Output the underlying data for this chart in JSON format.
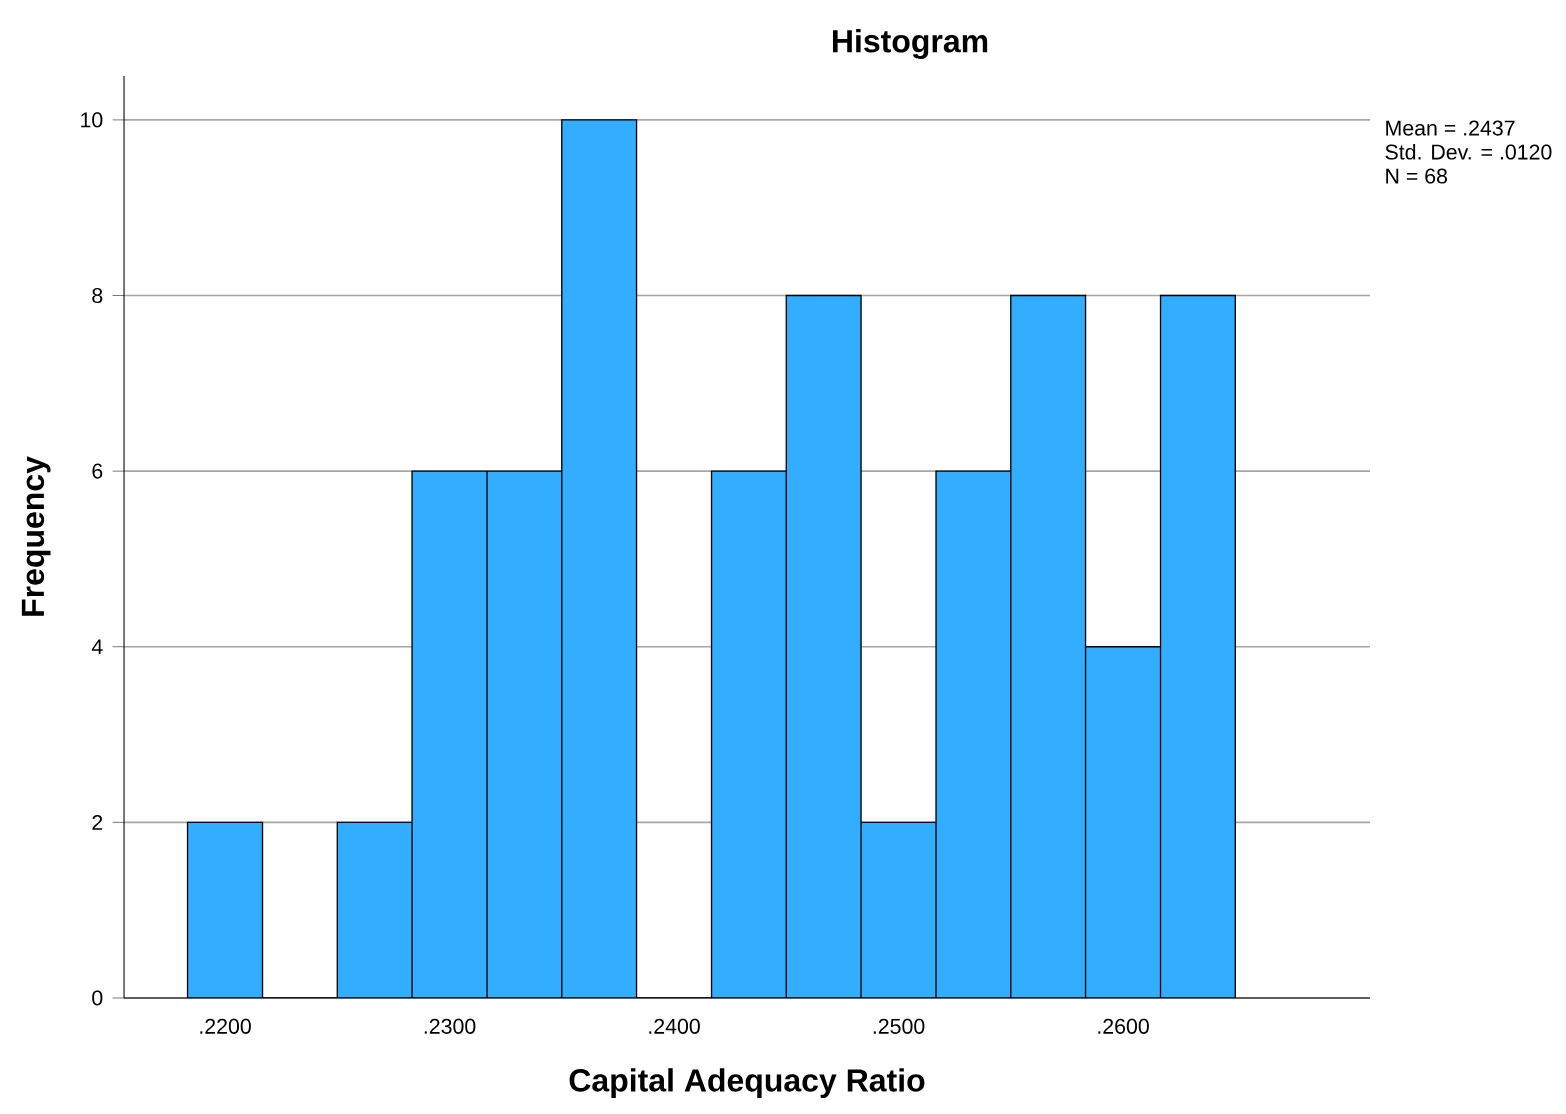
{
  "chart_data": {
    "type": "histogram",
    "title": "Histogram",
    "xlabel": "Capital Adequacy Ratio",
    "ylabel": "Frequency",
    "bins": [
      0.21833,
      0.22167,
      0.225,
      0.22833,
      0.23167,
      0.235,
      0.23833,
      0.24167,
      0.245,
      0.24833,
      0.25167,
      0.255,
      0.25833,
      0.26167,
      0.265
    ],
    "values": [
      2,
      0,
      2,
      6,
      6,
      10,
      0,
      6,
      8,
      2,
      6,
      8,
      4,
      8
    ],
    "color": "#33adff",
    "xlim": [
      0.2155,
      0.271
    ],
    "ylim": [
      0,
      10.5
    ],
    "xticks": [
      {
        "value": 0.22,
        "label": ".2200"
      },
      {
        "value": 0.23,
        "label": ".2300"
      },
      {
        "value": 0.24,
        "label": ".2400"
      },
      {
        "value": 0.25,
        "label": ".2500"
      },
      {
        "value": 0.26,
        "label": ".2600"
      }
    ],
    "yticks": [
      0,
      2,
      4,
      6,
      8,
      10
    ],
    "grid": "y",
    "annotations": [
      "Mean = .2437",
      "Std. Dev. = .0120",
      "N = 68"
    ]
  }
}
